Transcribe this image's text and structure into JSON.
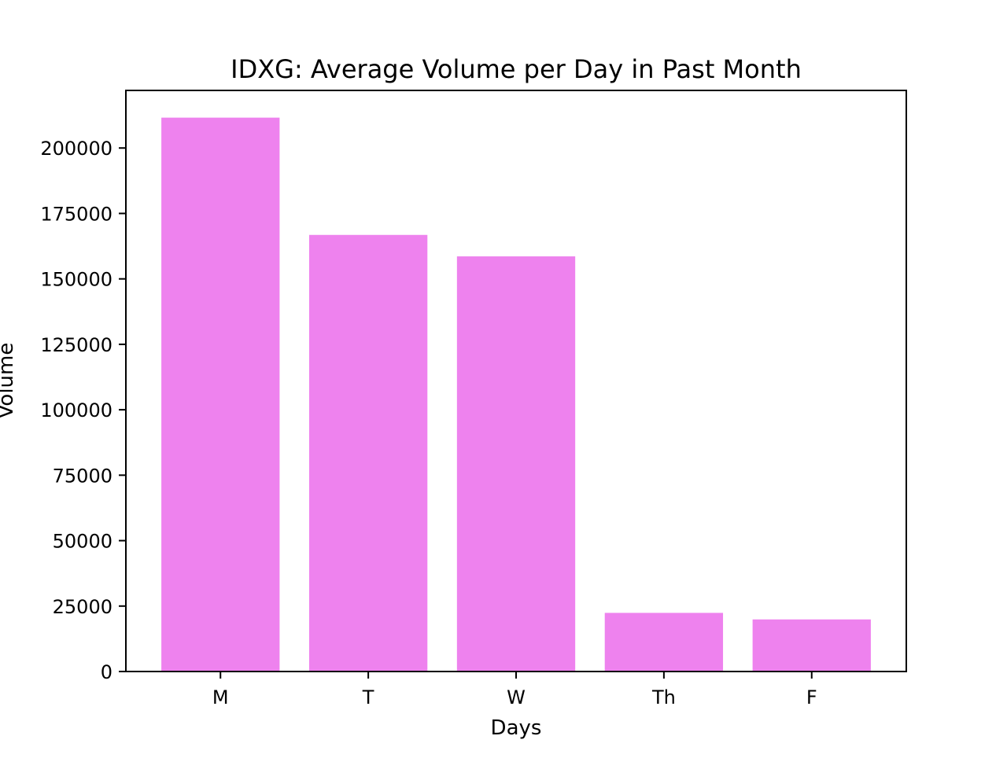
{
  "chart_data": {
    "type": "bar",
    "title": "IDXG: Average Volume per Day in Past Month",
    "xlabel": "Days",
    "ylabel": "Volume",
    "categories": [
      "M",
      "T",
      "W",
      "Th",
      "F"
    ],
    "values": [
      211600,
      166800,
      158600,
      22400,
      19900
    ],
    "ylim": [
      0,
      222000
    ],
    "yticks": [
      0,
      25000,
      50000,
      75000,
      100000,
      125000,
      150000,
      175000,
      200000
    ],
    "ytick_labels": [
      "0",
      "25000",
      "50000",
      "75000",
      "100000",
      "125000",
      "150000",
      "175000",
      "200000"
    ],
    "bar_color": "#ee82ee",
    "grid": false
  }
}
